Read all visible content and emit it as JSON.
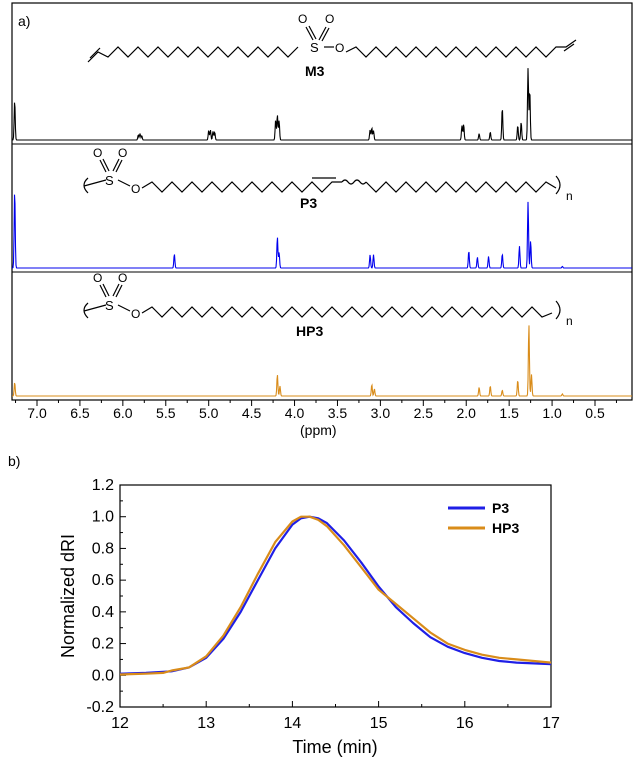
{
  "panel_a": {
    "label": "a)",
    "xlabel": "(ppm)",
    "xticks": [
      "7.0",
      "6.5",
      "6.0",
      "5.5",
      "5.0",
      "4.5",
      "4.0",
      "3.5",
      "3.0",
      "2.5",
      "2.0",
      "1.5",
      "1.0",
      "0.5"
    ],
    "compounds": [
      {
        "name": "M3",
        "color": "#000000"
      },
      {
        "name": "P3",
        "color": "#0000ee",
        "subscript": "n"
      },
      {
        "name": "HP3",
        "color": "#d98c1a",
        "subscript": "n"
      }
    ],
    "atom_labels": {
      "S": "S",
      "O": "O"
    }
  },
  "panel_b": {
    "label": "b)"
  },
  "chart_data": [
    {
      "type": "line",
      "title": "",
      "xlabel": "(ppm)",
      "ylabel": "",
      "x_reversed": true,
      "xlim": [
        7.5,
        0.0
      ],
      "series": [
        {
          "name": "M3",
          "color": "#000000",
          "peaks": [
            [
              7.26,
              0.55
            ],
            [
              5.82,
              0.07
            ],
            [
              5.8,
              0.09
            ],
            [
              5.78,
              0.06
            ],
            [
              5.0,
              0.13
            ],
            [
              4.98,
              0.14
            ],
            [
              4.95,
              0.12
            ],
            [
              4.93,
              0.11
            ],
            [
              4.22,
              0.28
            ],
            [
              4.2,
              0.35
            ],
            [
              4.18,
              0.27
            ],
            [
              3.12,
              0.14
            ],
            [
              3.1,
              0.17
            ],
            [
              3.08,
              0.13
            ],
            [
              2.05,
              0.2
            ],
            [
              2.03,
              0.22
            ],
            [
              1.85,
              0.09
            ],
            [
              1.72,
              0.11
            ],
            [
              1.58,
              0.45
            ],
            [
              1.4,
              0.2
            ],
            [
              1.36,
              0.25
            ],
            [
              1.28,
              1.0
            ],
            [
              1.26,
              0.7
            ]
          ]
        },
        {
          "name": "P3",
          "color": "#0000ee",
          "peaks": [
            [
              7.26,
              1.0
            ],
            [
              5.4,
              0.18
            ],
            [
              4.2,
              0.4
            ],
            [
              4.18,
              0.2
            ],
            [
              3.12,
              0.17
            ],
            [
              3.08,
              0.17
            ],
            [
              1.97,
              0.22
            ],
            [
              1.87,
              0.14
            ],
            [
              1.74,
              0.15
            ],
            [
              1.58,
              0.18
            ],
            [
              1.38,
              0.28
            ],
            [
              1.28,
              0.85
            ],
            [
              1.25,
              0.35
            ],
            [
              0.88,
              0.02
            ]
          ]
        },
        {
          "name": "HP3",
          "color": "#d98c1a",
          "peaks": [
            [
              7.26,
              0.19
            ],
            [
              4.2,
              0.3
            ],
            [
              4.17,
              0.14
            ],
            [
              3.1,
              0.16
            ],
            [
              3.07,
              0.1
            ],
            [
              1.85,
              0.12
            ],
            [
              1.72,
              0.14
            ],
            [
              1.58,
              0.08
            ],
            [
              1.4,
              0.22
            ],
            [
              1.27,
              1.0
            ],
            [
              1.24,
              0.3
            ],
            [
              0.88,
              0.03
            ]
          ]
        }
      ]
    },
    {
      "type": "line",
      "title": "",
      "xlabel": "Time (min)",
      "ylabel": "Normalized dRI",
      "xlim": [
        12,
        17
      ],
      "ylim": [
        -0.2,
        1.2
      ],
      "xticks": [
        "12",
        "13",
        "14",
        "15",
        "16",
        "17"
      ],
      "yticks": [
        "-0.2",
        "0.0",
        "0.2",
        "0.4",
        "0.6",
        "0.8",
        "1.0",
        "1.2"
      ],
      "legend": "top-right",
      "series": [
        {
          "name": "P3",
          "color": "#1f1fe6",
          "x": [
            12.0,
            12.3,
            12.6,
            12.8,
            13.0,
            13.2,
            13.4,
            13.6,
            13.8,
            14.0,
            14.1,
            14.2,
            14.3,
            14.4,
            14.6,
            14.8,
            15.0,
            15.2,
            15.4,
            15.6,
            15.8,
            16.0,
            16.2,
            16.4,
            16.6,
            16.8,
            17.0
          ],
          "y": [
            0.01,
            0.015,
            0.025,
            0.05,
            0.11,
            0.23,
            0.4,
            0.6,
            0.8,
            0.95,
            0.99,
            1.0,
            0.99,
            0.96,
            0.85,
            0.71,
            0.56,
            0.43,
            0.33,
            0.24,
            0.18,
            0.14,
            0.11,
            0.09,
            0.08,
            0.075,
            0.07
          ]
        },
        {
          "name": "HP3",
          "color": "#d98c1a",
          "x": [
            12.0,
            12.3,
            12.5,
            12.6,
            12.8,
            13.0,
            13.2,
            13.4,
            13.6,
            13.8,
            14.0,
            14.1,
            14.2,
            14.3,
            14.4,
            14.6,
            14.8,
            15.0,
            15.2,
            15.4,
            15.6,
            15.8,
            16.0,
            16.2,
            16.4,
            16.6,
            16.8,
            17.0
          ],
          "y": [
            0.005,
            0.01,
            0.015,
            0.03,
            0.05,
            0.12,
            0.25,
            0.43,
            0.64,
            0.84,
            0.97,
            1.0,
            1.0,
            0.98,
            0.94,
            0.82,
            0.68,
            0.54,
            0.45,
            0.36,
            0.27,
            0.2,
            0.16,
            0.13,
            0.11,
            0.1,
            0.09,
            0.08
          ]
        }
      ]
    }
  ]
}
